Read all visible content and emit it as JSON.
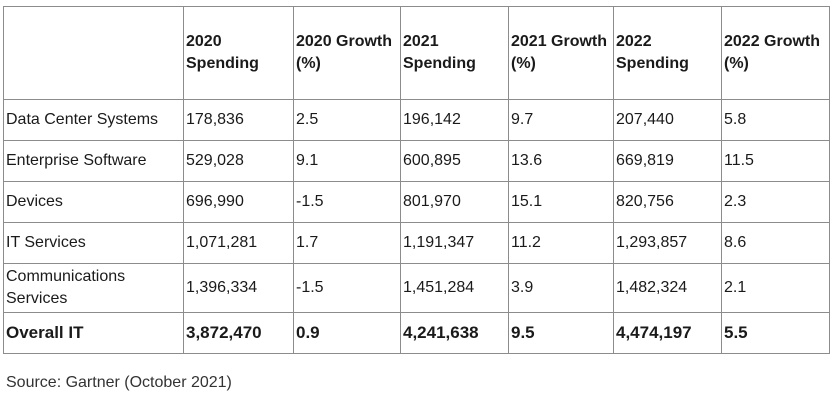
{
  "table": {
    "headers": [
      "",
      "2020 Spending",
      "2020 Growth (%)",
      "2021 Spending",
      "2021 Growth (%)",
      "2022 Spending",
      "2022 Growth (%)"
    ],
    "rows": [
      [
        "Data Center Systems",
        "178,836",
        "2.5",
        "196,142",
        "9.7",
        "207,440",
        "5.8"
      ],
      [
        "Enterprise Software",
        "529,028",
        "9.1",
        "600,895",
        "13.6",
        "669,819",
        "11.5"
      ],
      [
        "Devices",
        "696,990",
        "-1.5",
        "801,970",
        "15.1",
        "820,756",
        "2.3"
      ],
      [
        "IT Services",
        "1,071,281",
        "1.7",
        "1,191,347",
        "11.2",
        "1,293,857",
        "8.6"
      ],
      [
        "Communications Services",
        "1,396,334",
        "-1.5",
        "1,451,284",
        "3.9",
        "1,482,324",
        "2.1"
      ]
    ],
    "total": [
      "Overall IT",
      "3,872,470",
      "0.9",
      "4,241,638",
      "9.5",
      "4,474,197",
      "5.5"
    ]
  },
  "source": "Source: Gartner (October 2021)"
}
